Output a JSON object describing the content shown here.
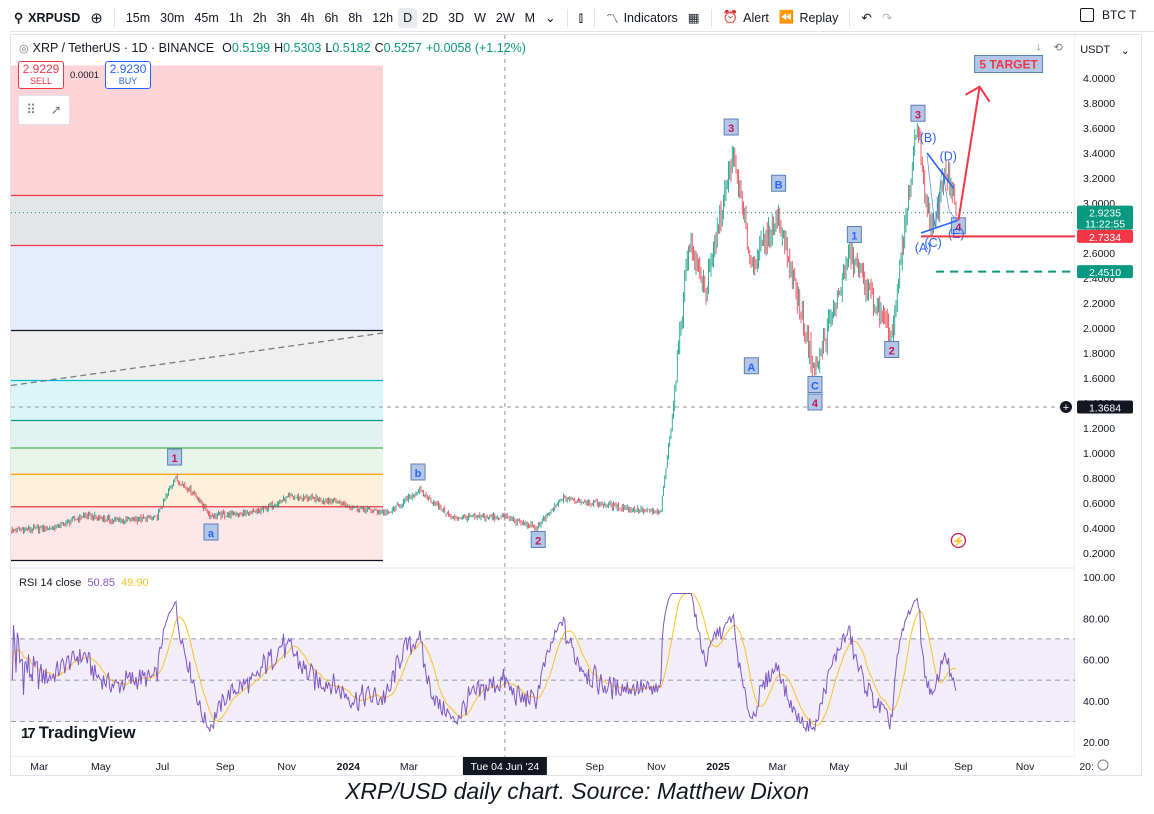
{
  "toolbar": {
    "symbol": "XRPUSD",
    "intervals": [
      "15m",
      "30m",
      "45m",
      "1h",
      "2h",
      "3h",
      "4h",
      "6h",
      "8h",
      "12h",
      "D",
      "2D",
      "3D",
      "W",
      "2W",
      "M"
    ],
    "active_interval": "D",
    "indicators_label": "Indicators",
    "alert_label": "Alert",
    "replay_label": "Replay",
    "compare_label": "BTC T"
  },
  "legend": {
    "title": "XRP / TetherUS · 1D · BINANCE",
    "o_label": "O",
    "o": "0.5199",
    "h_label": "H",
    "h": "0.5303",
    "l_label": "L",
    "l": "0.5182",
    "c_label": "C",
    "c": "0.5257",
    "change": "+0.0058 (+1.12%)"
  },
  "trade": {
    "sell_price": "2.9229",
    "sell_label": "SELL",
    "spread": "0.0001",
    "buy_price": "2.9230",
    "buy_label": "BUY"
  },
  "currency": "USDT",
  "price_scale": {
    "ticks": [
      "4.0000",
      "3.8000",
      "3.6000",
      "3.4000",
      "3.2000",
      "3.0000",
      "2.8000",
      "2.6000",
      "2.4000",
      "2.2000",
      "2.0000",
      "1.8000",
      "1.6000",
      "1.4000",
      "1.2000",
      "1.0000",
      "0.8000",
      "0.6000",
      "0.4000",
      "0.2000"
    ],
    "current_price": "2.9235",
    "countdown": "11:22:55",
    "red_level": "2.7334",
    "green_level": "2.4510",
    "crosshair_price": "1.3684"
  },
  "rsi": {
    "label": "RSI 14 close",
    "value": "50.85",
    "ma_value": "49.90",
    "ticks": [
      "100.00",
      "80.00",
      "60.00",
      "40.00",
      "20.00"
    ]
  },
  "time_axis": {
    "labels": [
      "Mar",
      "May",
      "Jul",
      "Sep",
      "Nov",
      "2024",
      "Mar",
      "Sep",
      "Nov",
      "2025",
      "Mar",
      "May",
      "Jul",
      "Sep",
      "Nov",
      "20:"
    ],
    "crosshair_date": "Tue 04 Jun '24"
  },
  "annotations": {
    "target": "5 TARGET",
    "wave_1a": "1",
    "wave_a": "a",
    "wave_b": "b",
    "wave_2a": "2",
    "wave_3a": "3",
    "wave_A": "A",
    "wave_B": "B",
    "wave_C": "C",
    "wave_4a": "4",
    "wave_1b": "1",
    "wave_2b": "2",
    "wave_3b": "3",
    "wave_4b": "4",
    "tri_A": "(A)",
    "tri_B": "(B)",
    "tri_C": "(C)",
    "tri_D": "(D)",
    "tri_E": "(E)"
  },
  "branding": "TradingView",
  "caption": "XRP/USD daily chart. Source: Matthew Dixon",
  "colors": {
    "candle_up": "#089981",
    "candle_down": "#f23645",
    "rsi_line": "#7e57c2",
    "rsi_ma": "#fbc02d",
    "rsi_band": "#7e57c2",
    "target": "#f23645",
    "wave_label_bg": "#b2c7e6"
  },
  "chart_data": {
    "type": "candlestick",
    "title": "XRP / TetherUS · 1D · BINANCE",
    "x_range": [
      "2023-02-01",
      "2025-12-31"
    ],
    "ylim": [
      0.1,
      4.1
    ],
    "close_path": [
      [
        "2023-02-01",
        0.38
      ],
      [
        "2023-03-15",
        0.4
      ],
      [
        "2023-04-15",
        0.5
      ],
      [
        "2023-05-15",
        0.46
      ],
      [
        "2023-06-25",
        0.48
      ],
      [
        "2023-07-13",
        0.8
      ],
      [
        "2023-08-01",
        0.68
      ],
      [
        "2023-08-17",
        0.5
      ],
      [
        "2023-10-01",
        0.52
      ],
      [
        "2023-11-05",
        0.65
      ],
      [
        "2023-12-15",
        0.62
      ],
      [
        "2024-01-10",
        0.56
      ],
      [
        "2024-02-10",
        0.52
      ],
      [
        "2024-03-11",
        0.7
      ],
      [
        "2024-04-13",
        0.48
      ],
      [
        "2024-06-04",
        0.49
      ],
      [
        "2024-07-05",
        0.4
      ],
      [
        "2024-07-31",
        0.64
      ],
      [
        "2024-09-15",
        0.58
      ],
      [
        "2024-11-05",
        0.52
      ],
      [
        "2024-11-16",
        1.25
      ],
      [
        "2024-12-03",
        2.7
      ],
      [
        "2024-12-20",
        2.3
      ],
      [
        "2025-01-16",
        3.4
      ],
      [
        "2025-02-03",
        2.5
      ],
      [
        "2025-03-02",
        2.9
      ],
      [
        "2025-04-07",
        1.64
      ],
      [
        "2025-05-12",
        2.6
      ],
      [
        "2025-06-22",
        1.92
      ],
      [
        "2025-07-18",
        3.66
      ],
      [
        "2025-07-24",
        3.1
      ],
      [
        "2025-08-02",
        2.76
      ],
      [
        "2025-08-14",
        3.3
      ],
      [
        "2025-08-25",
        2.92
      ]
    ],
    "horizontal_levels": [
      2.7334,
      2.451
    ],
    "rsi": {
      "label": "RSI 14 close",
      "value": 50.85,
      "ma": 49.9,
      "ylim": [
        20,
        100
      ],
      "bands": [
        30,
        70
      ]
    }
  }
}
